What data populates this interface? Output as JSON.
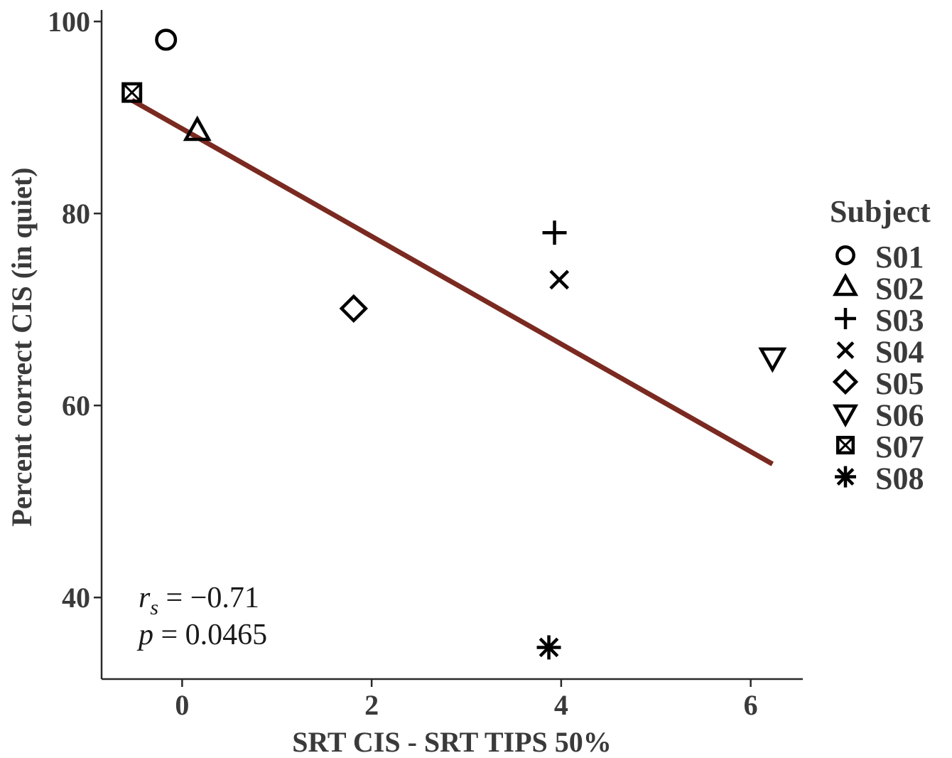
{
  "chart_data": {
    "type": "scatter",
    "xlabel": "SRT CIS - SRT TIPS 50%",
    "ylabel": "Percent correct CIS (in quiet)",
    "xlim": [
      -0.85,
      6.55
    ],
    "ylim": [
      31.5,
      101.2
    ],
    "xticks": [
      0,
      2,
      4,
      6
    ],
    "yticks": [
      40,
      60,
      80,
      100
    ],
    "series": [
      {
        "name": "S01",
        "marker": "circle",
        "x": -0.17,
        "y": 98.1
      },
      {
        "name": "S02",
        "marker": "triangle-up",
        "x": 0.16,
        "y": 88.6
      },
      {
        "name": "S03",
        "marker": "plus",
        "x": 3.93,
        "y": 78.0
      },
      {
        "name": "S04",
        "marker": "x",
        "x": 3.98,
        "y": 73.1
      },
      {
        "name": "S05",
        "marker": "diamond",
        "x": 1.81,
        "y": 70.1
      },
      {
        "name": "S06",
        "marker": "triangle-down",
        "x": 6.23,
        "y": 65.0
      },
      {
        "name": "S07",
        "marker": "square-x",
        "x": -0.53,
        "y": 92.6
      },
      {
        "name": "S08",
        "marker": "asterisk",
        "x": 3.87,
        "y": 34.8
      }
    ],
    "fit_line": {
      "x": [
        -0.53,
        6.23
      ],
      "y": [
        91.8,
        53.9
      ],
      "color": "#7a2a20"
    },
    "annotations": {
      "rs_symbol": "r",
      "rs_subscript": "s",
      "rs_value": " = −0.71",
      "p_symbol": "p",
      "p_value": " = 0.0465"
    },
    "legend": {
      "title": "Subject",
      "placement": "right"
    },
    "grid": false
  }
}
